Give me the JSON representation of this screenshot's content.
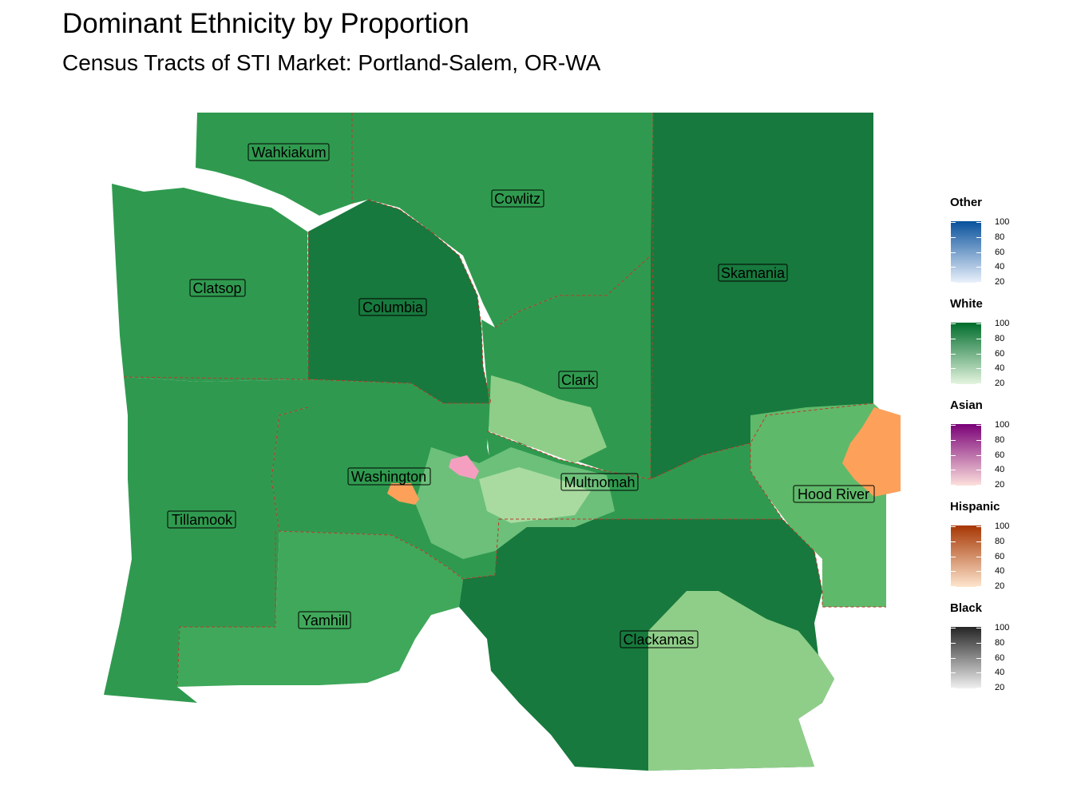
{
  "title": "Dominant Ethnicity by Proportion",
  "subtitle": "Census Tracts of STI Market: Portland-Salem, OR-WA",
  "colors": {
    "white_dark": "#17793d",
    "white_mid": "#2f9a4f",
    "white_light": "#8fce88",
    "white_pale": "#c9e9c0",
    "hispanic": "#fca05a",
    "asian": "#f59fc0",
    "county_border": "#c0392b"
  },
  "counties": [
    {
      "name": "Wahkiakum"
    },
    {
      "name": "Cowlitz"
    },
    {
      "name": "Skamania"
    },
    {
      "name": "Clatsop"
    },
    {
      "name": "Columbia"
    },
    {
      "name": "Clark"
    },
    {
      "name": "Washington"
    },
    {
      "name": "Multnomah"
    },
    {
      "name": "Hood River"
    },
    {
      "name": "Tillamook"
    },
    {
      "name": "Yamhill"
    },
    {
      "name": "Clackamas"
    }
  ],
  "legend": [
    {
      "title": "Other",
      "ticks": [
        "100",
        "80",
        "60",
        "40",
        "20"
      ],
      "color_low": "#eaf1fb",
      "color_high": "#08519c"
    },
    {
      "title": "White",
      "ticks": [
        "100",
        "80",
        "60",
        "40",
        "20"
      ],
      "color_low": "#e5f5e0",
      "color_high": "#006d2c"
    },
    {
      "title": "Asian",
      "ticks": [
        "100",
        "80",
        "60",
        "40",
        "20"
      ],
      "color_low": "#fde0dd",
      "color_high": "#7a0177"
    },
    {
      "title": "Hispanic",
      "ticks": [
        "100",
        "80",
        "60",
        "40",
        "20"
      ],
      "color_low": "#fee6ce",
      "color_high": "#a63603"
    },
    {
      "title": "Black",
      "ticks": [
        "100",
        "80",
        "60",
        "40",
        "20"
      ],
      "color_low": "#f0f0f0",
      "color_high": "#252525"
    }
  ]
}
